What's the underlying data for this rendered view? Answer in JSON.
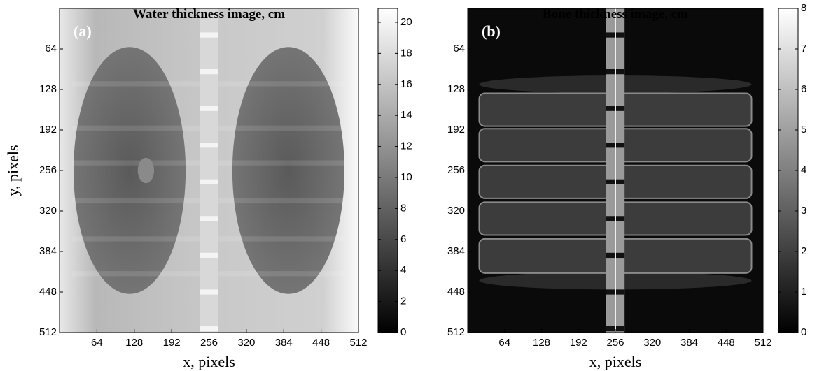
{
  "chart_data": [
    {
      "type": "image",
      "title": "Water thickness image, cm",
      "panel_label": "(a)",
      "xlabel": "x, pixels",
      "ylabel": "y, pixels",
      "xlim": [
        0,
        512
      ],
      "ylim": [
        0,
        512
      ],
      "y_inverted": true,
      "xticks": [
        64,
        128,
        192,
        256,
        320,
        384,
        448,
        512
      ],
      "yticks": [
        64,
        128,
        192,
        256,
        320,
        384,
        448,
        512
      ],
      "colormap": "gray",
      "clim": [
        0,
        20.9
      ],
      "cticks": [
        0,
        2,
        4,
        6,
        8,
        10,
        12,
        14,
        16,
        18,
        20
      ]
    },
    {
      "type": "image",
      "title": "Bone thickness image, cm",
      "panel_label": "(b)",
      "xlabel": "x, pixels",
      "xlim": [
        0,
        512
      ],
      "ylim": [
        0,
        512
      ],
      "y_inverted": true,
      "xticks": [
        64,
        128,
        192,
        256,
        320,
        384,
        448,
        512
      ],
      "yticks": [
        64,
        128,
        192,
        256,
        320,
        384,
        448,
        512
      ],
      "colormap": "gray",
      "clim": [
        0,
        8
      ],
      "cticks": [
        0,
        1,
        2,
        3,
        4,
        5,
        6,
        7,
        8
      ]
    }
  ]
}
